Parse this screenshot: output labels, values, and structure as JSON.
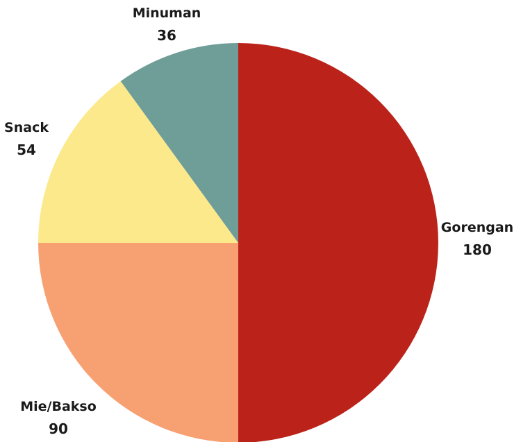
{
  "chart_data": {
    "type": "pie",
    "title": "",
    "slices": [
      {
        "label": "Gorengan",
        "value": 180,
        "value_label": "180",
        "color": "#bb231a"
      },
      {
        "label": "Mie/Bakso",
        "value": 90,
        "value_label": "90",
        "color": "#f7a072"
      },
      {
        "label": "Snack",
        "value": 54,
        "value_label": "54",
        "color": "#fbe98b"
      },
      {
        "label": "Minuman",
        "value": 36,
        "value_label": "36",
        "color": "#6f9d97"
      }
    ],
    "start_angle": "12 o'clock",
    "direction": "clockwise",
    "legend": "none (labels placed beside slices)"
  }
}
